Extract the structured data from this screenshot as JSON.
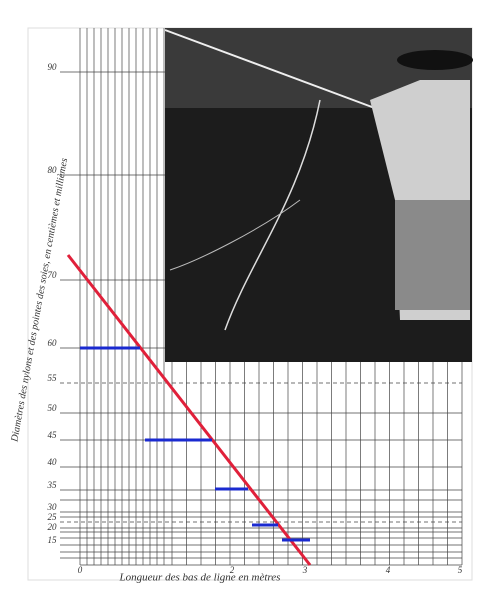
{
  "axis_labels": {
    "y": "Diamètres des nylons et des pointes des soies, en centièmes et millièmes",
    "x": "Longueur des bas de ligne en mètres"
  },
  "y_ticks": [
    90,
    80,
    70,
    60,
    55,
    50,
    45,
    40,
    35,
    30,
    25,
    20,
    15
  ],
  "x_ticks": [
    0,
    2,
    3,
    4,
    5
  ]
}
